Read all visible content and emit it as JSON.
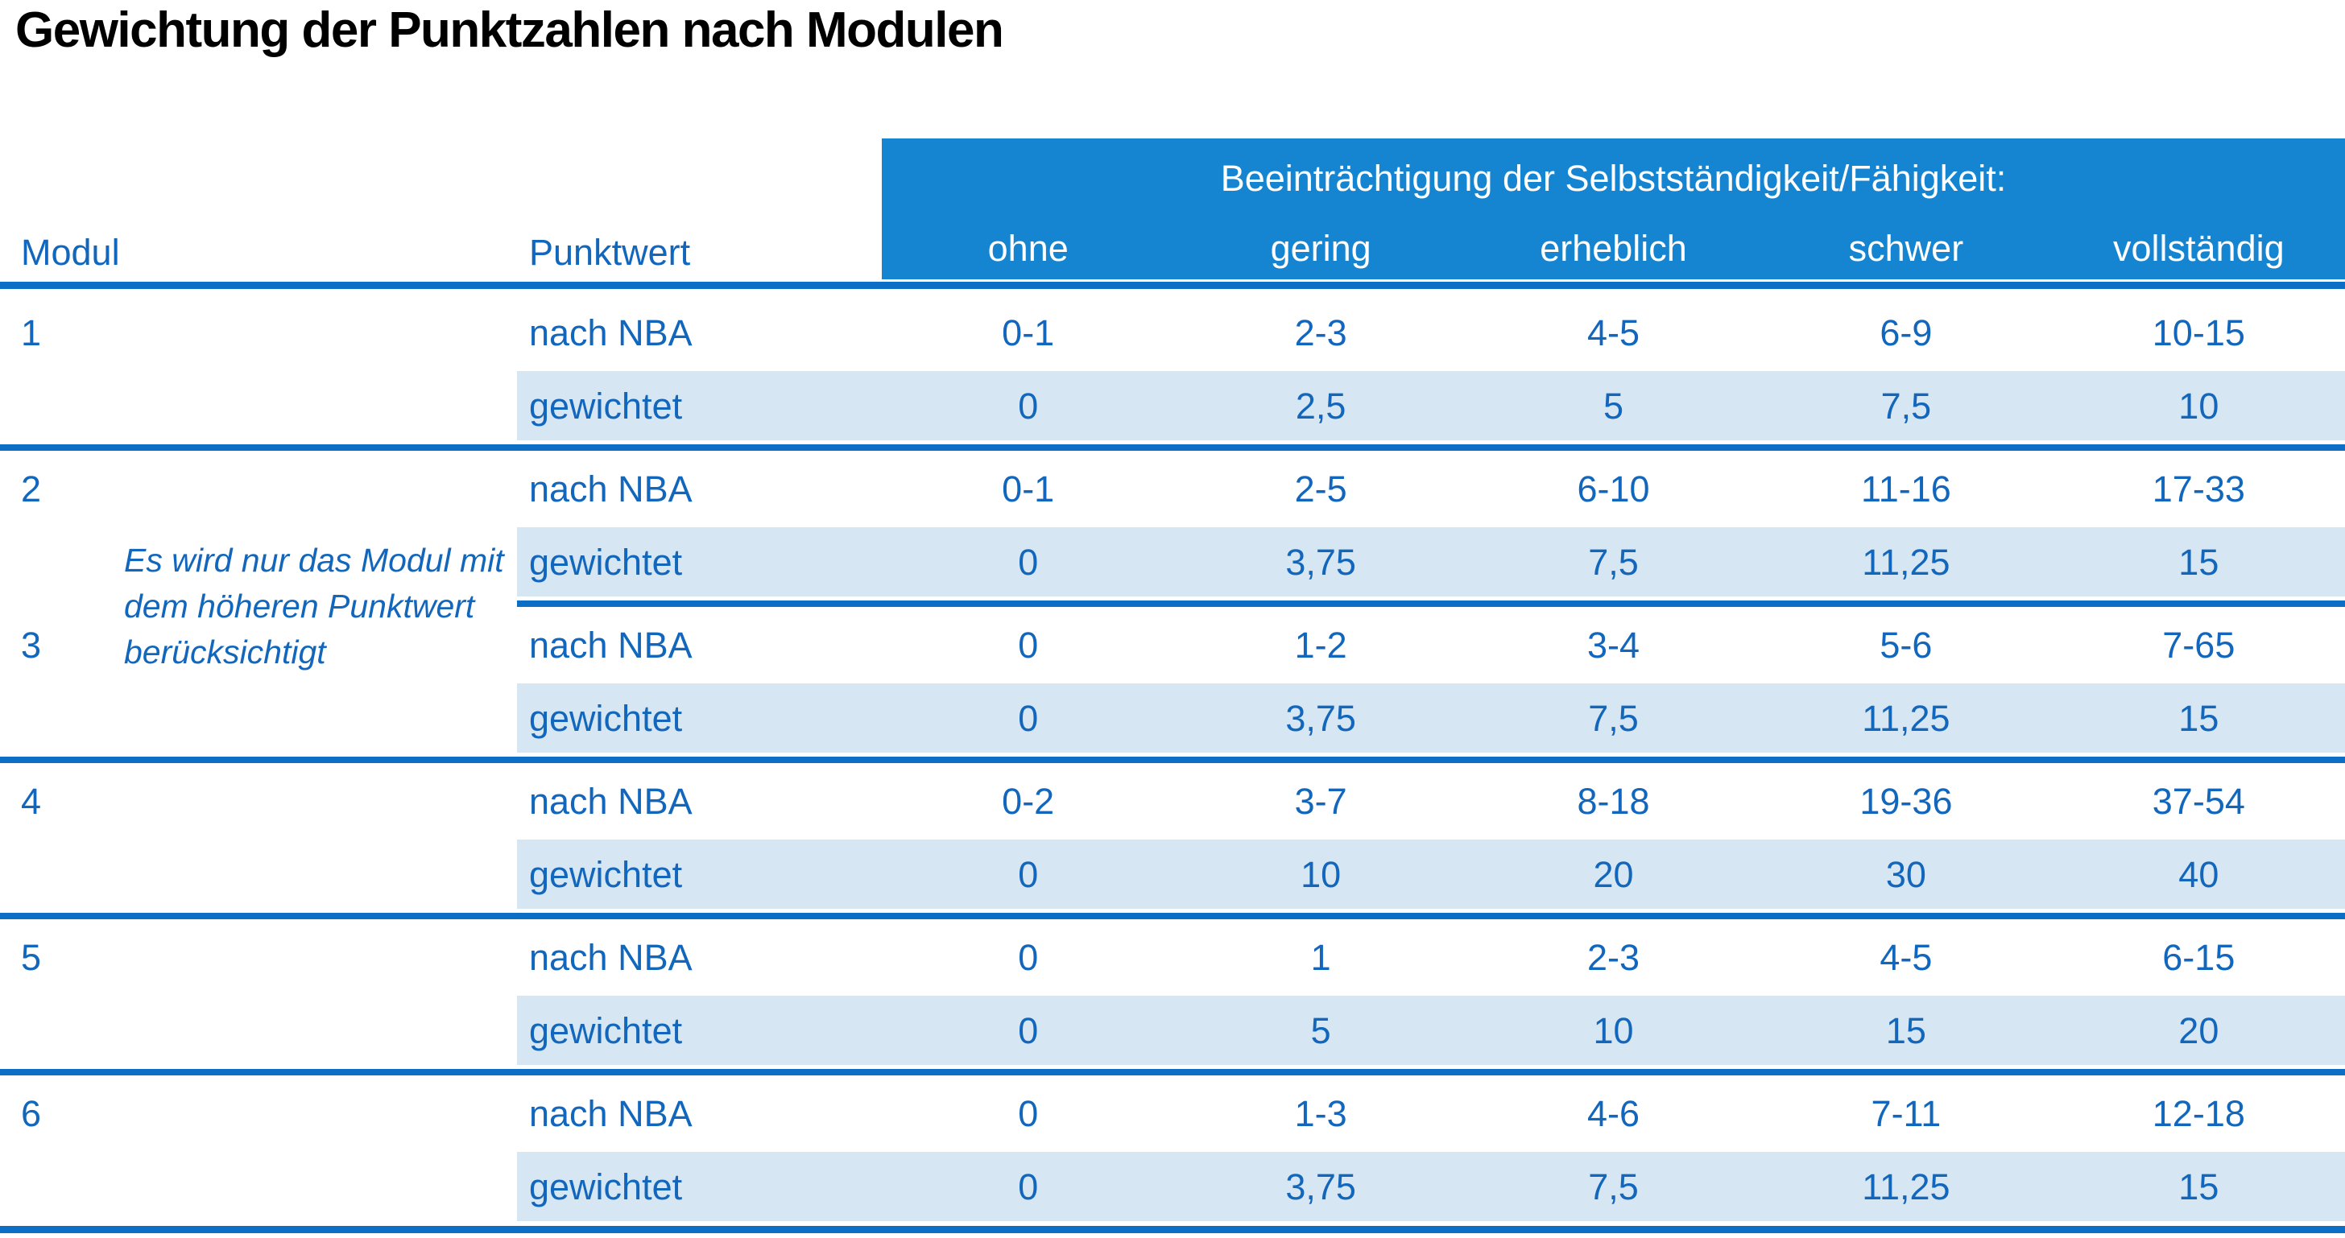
{
  "title": "Gewichtung der Punktzahlen nach Modulen",
  "colors": {
    "header_blue": "#1585d2",
    "line_blue": "#0c6fc5",
    "text_blue": "#1267bd",
    "shade_blue": "#d6e6f3",
    "title_black": "#000000",
    "band_white": "#ffffff"
  },
  "table": {
    "col_modul": "Modul",
    "col_punktwert": "Punktwert",
    "impairment_header": "Beeinträchtigung der Selbstständigkeit/Fähigkeit:",
    "severity_levels": [
      "ohne",
      "gering",
      "erheblich",
      "schwer",
      "vollständig"
    ],
    "row_labels": {
      "nba": "nach NBA",
      "weighted": "gewichtet"
    },
    "note": "Es wird nur das Modul mit dem höheren Punktwert berücksichtigt",
    "modules": [
      {
        "id": "1",
        "nba": [
          "0-1",
          "2-3",
          "4-5",
          "6-9",
          "10-15"
        ],
        "weighted": [
          "0",
          "2,5",
          "5",
          "7,5",
          "10"
        ]
      },
      {
        "id": "2",
        "nba": [
          "0-1",
          "2-5",
          "6-10",
          "11-16",
          "17-33"
        ],
        "weighted": [
          "0",
          "3,75",
          "7,5",
          "11,25",
          "15"
        ]
      },
      {
        "id": "3",
        "nba": [
          "0",
          "1-2",
          "3-4",
          "5-6",
          "7-65"
        ],
        "weighted": [
          "0",
          "3,75",
          "7,5",
          "11,25",
          "15"
        ]
      },
      {
        "id": "4",
        "nba": [
          "0-2",
          "3-7",
          "8-18",
          "19-36",
          "37-54"
        ],
        "weighted": [
          "0",
          "10",
          "20",
          "30",
          "40"
        ]
      },
      {
        "id": "5",
        "nba": [
          "0",
          "1",
          "2-3",
          "4-5",
          "6-15"
        ],
        "weighted": [
          "0",
          "5",
          "10",
          "15",
          "20"
        ]
      },
      {
        "id": "6",
        "nba": [
          "0",
          "1-3",
          "4-6",
          "7-11",
          "12-18"
        ],
        "weighted": [
          "0",
          "3,75",
          "7,5",
          "11,25",
          "15"
        ]
      }
    ]
  }
}
